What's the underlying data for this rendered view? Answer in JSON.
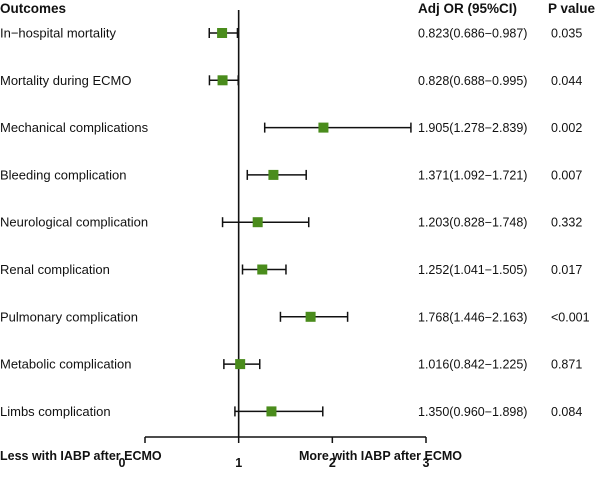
{
  "chart_data": {
    "type": "forest",
    "headers": {
      "outcomes": "Outcomes",
      "or": "Adj OR (95%CI)",
      "p": "P value"
    },
    "rows": [
      {
        "outcome": "In−hospital mortality",
        "or": 0.823,
        "lower": 0.686,
        "upper": 0.987,
        "or_text": "0.823(0.686−0.987)",
        "p": "0.035"
      },
      {
        "outcome": "Mortality during ECMO",
        "or": 0.828,
        "lower": 0.688,
        "upper": 0.995,
        "or_text": "0.828(0.688−0.995)",
        "p": "0.044"
      },
      {
        "outcome": "Mechanical complications",
        "or": 1.905,
        "lower": 1.278,
        "upper": 2.839,
        "or_text": "1.905(1.278−2.839)",
        "p": "0.002"
      },
      {
        "outcome": "Bleeding complication",
        "or": 1.371,
        "lower": 1.092,
        "upper": 1.721,
        "or_text": "1.371(1.092−1.721)",
        "p": "0.007"
      },
      {
        "outcome": "Neurological complication",
        "or": 1.203,
        "lower": 0.828,
        "upper": 1.748,
        "or_text": "1.203(0.828−1.748)",
        "p": "0.332"
      },
      {
        "outcome": "Renal complication",
        "or": 1.252,
        "lower": 1.041,
        "upper": 1.505,
        "or_text": "1.252(1.041−1.505)",
        "p": "0.017"
      },
      {
        "outcome": "Pulmonary complication",
        "or": 1.768,
        "lower": 1.446,
        "upper": 2.163,
        "or_text": "1.768(1.446−2.163)",
        "p": "<0.001"
      },
      {
        "outcome": "Metabolic complication",
        "or": 1.016,
        "lower": 0.842,
        "upper": 1.225,
        "or_text": "1.016(0.842−1.225)",
        "p": "0.871"
      },
      {
        "outcome": "Limbs complication",
        "or": 1.35,
        "lower": 0.96,
        "upper": 1.898,
        "or_text": "1.350(0.960−1.898)",
        "p": "0.084"
      }
    ],
    "xlim": [
      0,
      3
    ],
    "xticks": [
      "0",
      "1",
      "2",
      "3"
    ],
    "reference_line": 1,
    "footer_left": "Less with IABP after ECMO",
    "footer_right": "More with IABP after ECMO",
    "marker_color": "#4a8c1c",
    "line_color": "#111111"
  }
}
